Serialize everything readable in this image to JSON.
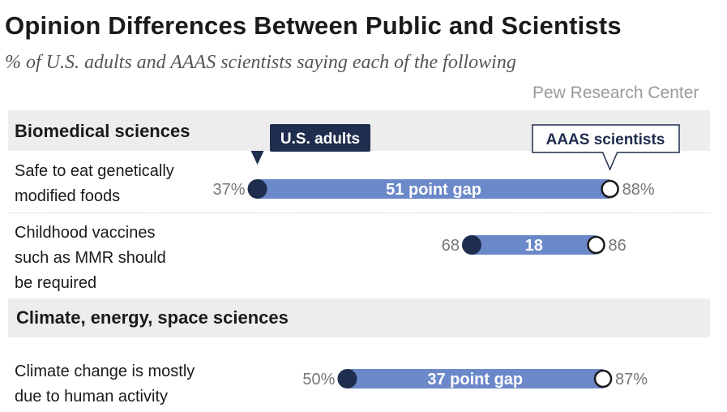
{
  "chart_data": {
    "type": "dumbbell",
    "title": "Opinion Differences Between Public and Scientists",
    "subtitle": "% of U.S. adults and AAAS scientists saying each of the following",
    "source": "Pew Research Center",
    "legend": {
      "series_a": "U.S. adults",
      "series_b": "AAAS scientists"
    },
    "sections": [
      {
        "name": "Biomedical sciences"
      },
      {
        "name": "Climate, energy, space sciences"
      }
    ],
    "rows": [
      {
        "label_lines": [
          "Safe to eat genetically",
          "modified foods"
        ],
        "section": "Biomedical sciences",
        "us_adults": 37,
        "aaas_scientists": 88,
        "us_label": "37%",
        "aaas_label": "88%",
        "gap_label": "51 point gap"
      },
      {
        "label_lines": [
          "Childhood vaccines",
          "such as MMR should",
          "be required"
        ],
        "section": "Biomedical sciences",
        "us_adults": 68,
        "aaas_scientists": 86,
        "us_label": "68",
        "aaas_label": "86",
        "gap_label": "18"
      },
      {
        "label_lines": [
          "Climate change is mostly",
          "due to human activity"
        ],
        "section": "Climate, energy, space sciences",
        "us_adults": 50,
        "aaas_scientists": 87,
        "us_label": "50%",
        "aaas_label": "87%",
        "gap_label": "37 point gap"
      }
    ],
    "colors": {
      "bar": "#6b88c9",
      "us_dot": "#1f2d4e",
      "aaas_dot": "#ffffff",
      "label_box": "#1f2d4e"
    }
  }
}
